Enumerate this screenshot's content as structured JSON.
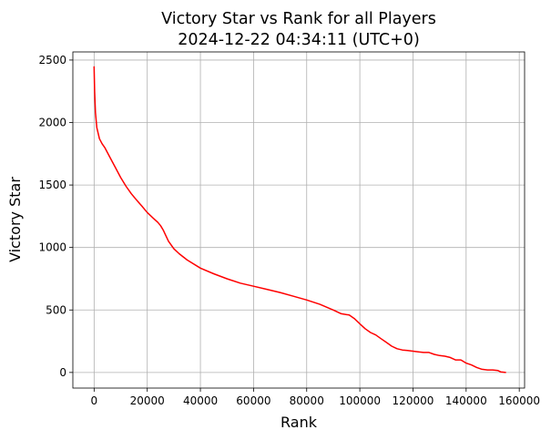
{
  "chart_data": {
    "type": "line",
    "title": "Victory Star vs Rank for all Players",
    "subtitle": "2024-12-22 04:34:11 (UTC+0)",
    "xlabel": "Rank",
    "ylabel": "Victory Star",
    "xlim": [
      -8000,
      162000
    ],
    "ylim": [
      -125,
      2565
    ],
    "x_ticks": [
      0,
      20000,
      40000,
      60000,
      80000,
      100000,
      120000,
      140000,
      160000
    ],
    "y_ticks": [
      0,
      500,
      1000,
      1500,
      2000,
      2500
    ],
    "grid": true,
    "line_color": "#ff0000",
    "series": [
      {
        "x": [
          0,
          200,
          500,
          1000,
          2000,
          3000,
          4000,
          5000,
          6000,
          8000,
          10000,
          12000,
          14000,
          16000,
          18000,
          20000,
          22000,
          24000,
          25000,
          26000,
          28000,
          30000,
          32000,
          35000,
          40000,
          45000,
          50000,
          55000,
          60000,
          65000,
          70000,
          75000,
          80000,
          85000,
          90000,
          93000,
          96000,
          98000,
          100000,
          102000,
          104000,
          106000,
          108000,
          110000,
          112000,
          114000,
          116000,
          118000,
          120000,
          122000,
          124000,
          126000,
          128000,
          130000,
          132000,
          134000,
          136000,
          138000,
          140000,
          142000,
          144000,
          146000,
          148000,
          150000,
          152000,
          153000,
          155000
        ],
        "y": [
          2450,
          2250,
          2080,
          1960,
          1870,
          1830,
          1800,
          1760,
          1720,
          1640,
          1560,
          1490,
          1430,
          1380,
          1330,
          1280,
          1240,
          1200,
          1175,
          1140,
          1050,
          990,
          950,
          900,
          835,
          790,
          750,
          715,
          690,
          665,
          640,
          610,
          580,
          545,
          500,
          470,
          460,
          430,
          390,
          350,
          320,
          300,
          270,
          240,
          210,
          190,
          180,
          175,
          170,
          165,
          160,
          160,
          145,
          135,
          130,
          120,
          100,
          100,
          75,
          60,
          40,
          25,
          20,
          20,
          15,
          5,
          0
        ]
      }
    ]
  }
}
